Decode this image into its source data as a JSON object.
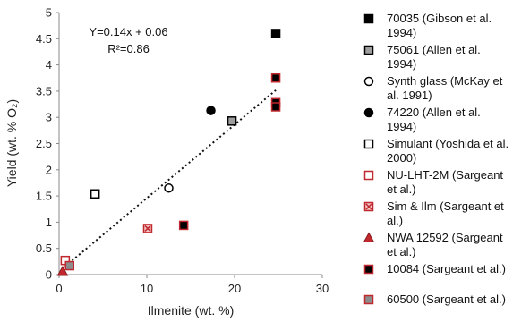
{
  "chart_data": {
    "type": "scatter",
    "xlabel": "Ilmenite (wt. %)",
    "ylabel": "Yield (wt. % O₂)",
    "xlim": [
      0,
      30
    ],
    "ylim": [
      0,
      5
    ],
    "xticks": [
      "0",
      "10",
      "20",
      "30"
    ],
    "yticks": [
      "0",
      "0.5",
      "1",
      "1.5",
      "2",
      "2.5",
      "3",
      "3.5",
      "4",
      "4.5",
      "5"
    ],
    "grid": false,
    "legend_position": "right",
    "annotation": {
      "equation": "Y=0.14x + 0.06",
      "r2": "R²=0.86"
    },
    "trendline": {
      "slope": 0.14,
      "intercept": 0.06,
      "x_range": [
        0.3,
        24.7
      ],
      "style": "dotted",
      "color": "#111111"
    },
    "series": [
      {
        "name": "70035 (Gibson et al. 1994)",
        "legend_lines": [
          "70035 (Gibson et al.",
          "1994)"
        ],
        "marker": "square",
        "fill": "#000000",
        "stroke": "#000000",
        "points": [
          [
            24.7,
            4.6
          ]
        ]
      },
      {
        "name": "75061 (Allen et al. 1994)",
        "legend_lines": [
          "75061 (Allen et al.",
          "1994)"
        ],
        "marker": "square",
        "fill": "#9e9e9e",
        "stroke": "#000000",
        "points": [
          [
            19.7,
            2.93
          ]
        ]
      },
      {
        "name": "Synth glass (McKay et al. 1991)",
        "legend_lines": [
          "Synth glass (McKay et",
          "al. 1991)"
        ],
        "marker": "circle-open",
        "fill": "#ffffff",
        "stroke": "#000000",
        "points": [
          [
            12.5,
            1.65
          ]
        ]
      },
      {
        "name": "74220 (Allen et al. 1994)",
        "legend_lines": [
          "74220 (Allen et al.",
          "1994)"
        ],
        "marker": "circle",
        "fill": "#000000",
        "stroke": "#000000",
        "points": [
          [
            17.3,
            3.13
          ]
        ]
      },
      {
        "name": "Simulant (Yoshida et al. 2000)",
        "legend_lines": [
          "Simulant (Yoshida et al.",
          "2000)"
        ],
        "marker": "square-open",
        "fill": "#ffffff",
        "stroke": "#000000",
        "points": [
          [
            4.1,
            1.54
          ]
        ]
      },
      {
        "name": "NU-LHT-2M (Sargeant et al.)",
        "legend_lines": [
          "NU-LHT-2M (Sargeant",
          "et al.)"
        ],
        "marker": "square-open",
        "fill": "#ffffff",
        "stroke": "#c0282d",
        "points": [
          [
            0.7,
            0.27
          ]
        ]
      },
      {
        "name": "Sim & Ilm (Sargeant et al.)",
        "legend_lines": [
          "Sim & Ilm (Sargeant et",
          "al.)"
        ],
        "marker": "square-x",
        "fill": "#f2c4c4",
        "stroke": "#c0282d",
        "points": [
          [
            10.1,
            0.88
          ]
        ]
      },
      {
        "name": "NWA 12592 (Sargeant et al.)",
        "legend_lines": [
          "NWA 12592 (Sargeant",
          "et al.)"
        ],
        "marker": "triangle",
        "fill": "#c0282d",
        "stroke": "#8a1a1e",
        "points": [
          [
            0.4,
            0.06
          ]
        ]
      },
      {
        "name": "10084 (Sargeant et al.)",
        "legend_lines": [
          "10084 (Sargeant et al.)"
        ],
        "marker": "square",
        "fill": "#000000",
        "stroke": "#c0282d",
        "points": [
          [
            14.2,
            0.94
          ],
          [
            24.7,
            3.75
          ],
          [
            24.7,
            3.28
          ],
          [
            24.7,
            3.2
          ]
        ]
      },
      {
        "name": "60500 (Sargeant et al.)",
        "legend_lines": [
          "60500 (Sargeant et al.)"
        ],
        "marker": "square",
        "fill": "#8c8c8c",
        "stroke": "#c0282d",
        "points": [
          [
            1.2,
            0.17
          ]
        ]
      }
    ]
  }
}
